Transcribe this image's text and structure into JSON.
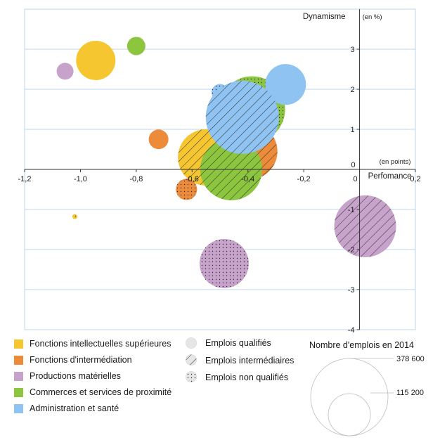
{
  "chart_data": {
    "type": "bubble",
    "xlim": [
      -1.2,
      0.2
    ],
    "ylim": [
      -4,
      4
    ],
    "x_ticks": [
      "-1,2",
      "-1,0",
      "-0,8",
      "-0,6",
      "-0,4",
      "-0,2",
      "0",
      "0,2"
    ],
    "y_ticks": [
      "3",
      "2",
      "1",
      "0",
      "-1",
      "-2",
      "-3",
      "-4"
    ],
    "xlabel": "Perfomance",
    "xunit": "(en points)",
    "ylabel": "Dynamisme",
    "yunit": "(en %)",
    "grid": "horizontal",
    "colors": {
      "Fonctions intellectuelles supérieures": "#f6c631",
      "Fonctions d'intermédiation": "#ec8c3b",
      "Productions matérielles": "#c7a3cc",
      "Commerces et services de proximité": "#8cc63f",
      "Administration et santé": "#8fc3f1"
    },
    "series": [
      {
        "name": "Fonctions intellectuelles supérieures",
        "color": "#f6c631",
        "points": [
          {
            "x": -0.945,
            "y": 2.72,
            "r": 28,
            "qualif": "Emplois qualifiés"
          },
          {
            "x": -0.55,
            "y": 0.3,
            "r": 40,
            "qualif": "Emplois intermédiaires"
          },
          {
            "x": -1.02,
            "y": -1.18,
            "r": 3.5,
            "qualif": "Emplois non qualifiés"
          }
        ]
      },
      {
        "name": "Fonctions d'intermédiation",
        "color": "#ec8c3b",
        "points": [
          {
            "x": -0.72,
            "y": 0.75,
            "r": 14,
            "qualif": "Emplois qualifiés"
          },
          {
            "x": -0.62,
            "y": -0.5,
            "r": 15,
            "qualif": "Emplois non qualifiés"
          },
          {
            "x": -0.395,
            "y": 0.45,
            "r": 40,
            "qualif": "Emplois intermédiaires"
          }
        ]
      },
      {
        "name": "Productions matérielles",
        "color": "#c7a3cc",
        "points": [
          {
            "x": -1.055,
            "y": 2.45,
            "r": 12,
            "qualif": "Emplois qualifiés"
          },
          {
            "x": 0.02,
            "y": -1.42,
            "r": 44,
            "qualif": "Emplois intermédiaires"
          },
          {
            "x": -0.485,
            "y": -2.35,
            "r": 35,
            "qualif": "Emplois non qualifiés"
          }
        ]
      },
      {
        "name": "Commerces et services de proximité",
        "color": "#8cc63f",
        "points": [
          {
            "x": -0.8,
            "y": 3.08,
            "r": 13,
            "qualif": "Emplois qualifiés"
          },
          {
            "x": -0.46,
            "y": 0.0,
            "r": 44,
            "qualif": "Emplois intermédiaires"
          },
          {
            "x": -0.385,
            "y": 1.5,
            "r": 47,
            "qualif": "Emplois non qualifiés"
          }
        ]
      },
      {
        "name": "Administration et santé",
        "color": "#8fc3f1",
        "points": [
          {
            "x": -0.265,
            "y": 2.12,
            "r": 29,
            "qualif": "Emplois qualifiés"
          },
          {
            "x": -0.5,
            "y": 1.92,
            "r": 12,
            "qualif": "Emplois non qualifiés"
          },
          {
            "x": -0.42,
            "y": 1.3,
            "r": 52,
            "qualif": "Emplois intermédiaires"
          }
        ]
      }
    ]
  },
  "legend": {
    "categories": [
      {
        "label": "Fonctions intellectuelles supérieures",
        "color": "#f6c631"
      },
      {
        "label": "Fonctions d'intermédiation",
        "color": "#ec8c3b"
      },
      {
        "label": "Productions matérielles",
        "color": "#c7a3cc"
      },
      {
        "label": "Commerces et services de proximité",
        "color": "#8cc63f"
      },
      {
        "label": "Administration et santé",
        "color": "#8fc3f1"
      }
    ],
    "patterns": [
      {
        "label": "Emplois qualifiés",
        "pattern": "plain"
      },
      {
        "label": "Emplois intermédiaires",
        "pattern": "hatch"
      },
      {
        "label": "Emplois non qualifiés",
        "pattern": "dots"
      }
    ],
    "size_title": "Nombre d'emplois en 2014",
    "size_labels": [
      "378 600",
      "115 200"
    ]
  }
}
